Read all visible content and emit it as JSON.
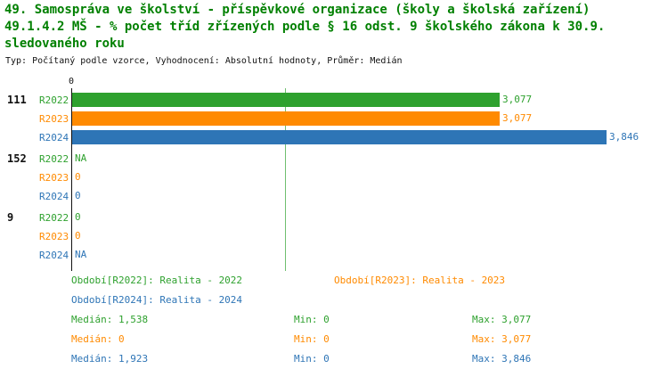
{
  "title": {
    "line1": "49. Samospráva ve školství - příspěvkové organizace (školy a školská zařízení)",
    "line2": "49.1.4.2 MŠ - % počet tříd zřízených podle § 16 odst. 9 školského zákona k 30.9.",
    "line3": "sledovaného roku",
    "meta": "Typ: Počítaný podle vzorce, Vyhodnocení: Absolutní hodnoty, Průměr: Medián"
  },
  "colors": {
    "green": "#2EA12E",
    "orange": "#FF8A00",
    "blue": "#2E75B6",
    "title": "#008000",
    "median": "#6FBF6F"
  },
  "chart_data": {
    "type": "bar",
    "orientation": "horizontal",
    "x_origin_label": "0",
    "xmax": 3846,
    "grid": "single vertical median line",
    "groups": [
      {
        "label": "111",
        "bars": [
          {
            "series": "R2022",
            "color": "green",
            "value": 3077,
            "display": "3,077"
          },
          {
            "series": "R2023",
            "color": "orange",
            "value": 3077,
            "display": "3,077"
          },
          {
            "series": "R2024",
            "color": "blue",
            "value": 3846,
            "display": "3,846"
          }
        ]
      },
      {
        "label": "152",
        "bars": [
          {
            "series": "R2022",
            "color": "green",
            "value": null,
            "display": "NA"
          },
          {
            "series": "R2023",
            "color": "orange",
            "value": 0,
            "display": "0"
          },
          {
            "series": "R2024",
            "color": "blue",
            "value": 0,
            "display": "0"
          }
        ]
      },
      {
        "label": "9",
        "bars": [
          {
            "series": "R2022",
            "color": "green",
            "value": 0,
            "display": "0"
          },
          {
            "series": "R2023",
            "color": "orange",
            "value": 0,
            "display": "0"
          },
          {
            "series": "R2024",
            "color": "blue",
            "value": null,
            "display": "NA"
          }
        ]
      }
    ],
    "median_lines": [
      {
        "value": 1538,
        "series": "R2022"
      }
    ],
    "series_stats": [
      {
        "series": "R2022",
        "median": 1538,
        "min": 0,
        "max": 3077
      },
      {
        "series": "R2023",
        "median": 0,
        "min": 0,
        "max": 3077
      },
      {
        "series": "R2024",
        "median": 1923,
        "min": 0,
        "max": 3846
      }
    ]
  },
  "legend": {
    "r2022": "Období[R2022]: Realita - 2022",
    "r2023": "Období[R2023]: Realita - 2023",
    "r2024": "Období[R2024]: Realita - 2024"
  },
  "stats": {
    "rows": [
      {
        "median": "Medián: 1,538",
        "min": "Min: 0",
        "max": "Max: 3,077"
      },
      {
        "median": "Medián: 0",
        "min": "Min: 0",
        "max": "Max: 3,077"
      },
      {
        "median": "Medián: 1,923",
        "min": "Min: 0",
        "max": "Max: 3,846"
      }
    ]
  }
}
